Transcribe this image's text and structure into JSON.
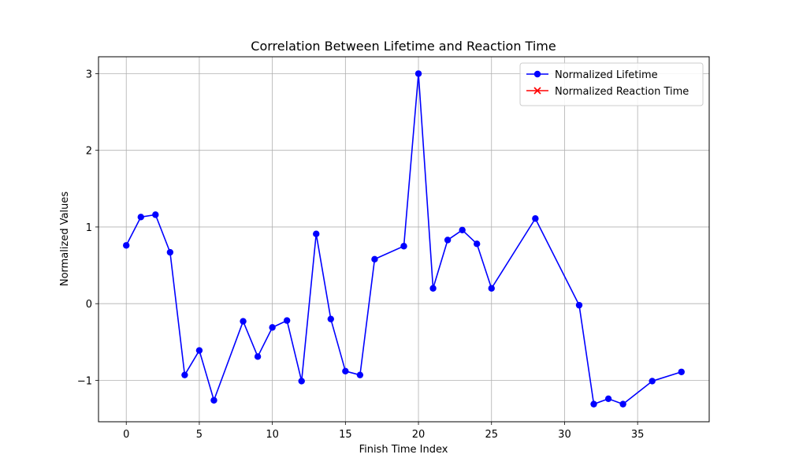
{
  "chart_data": {
    "type": "line",
    "title": "Correlation Between Lifetime and Reaction Time",
    "xlabel": "Finish Time Index",
    "ylabel": "Normalized Values",
    "xlim": [
      -1.9,
      39.9
    ],
    "ylim": [
      -1.54,
      3.22
    ],
    "xticks": [
      0,
      5,
      10,
      15,
      20,
      25,
      30,
      35
    ],
    "yticks": [
      -1,
      0,
      1,
      2,
      3
    ],
    "ytick_labels": [
      "−1",
      "0",
      "1",
      "2",
      "3"
    ],
    "grid": true,
    "legend_position": "upper-right",
    "series": [
      {
        "name": "Normalized Lifetime",
        "color": "#0000ff",
        "marker": "circle",
        "x": [
          0,
          1,
          2,
          3,
          4,
          5,
          6,
          8,
          9,
          10,
          11,
          12,
          13,
          14,
          15,
          16,
          17,
          19,
          20,
          21,
          22,
          23,
          24,
          25,
          28,
          31,
          32,
          33,
          34,
          36,
          38
        ],
        "y": [
          0.76,
          1.13,
          1.16,
          0.67,
          -0.93,
          -0.61,
          -1.26,
          -0.23,
          -0.69,
          -0.31,
          -0.22,
          -1.01,
          0.91,
          -0.2,
          -0.88,
          -0.93,
          0.58,
          0.75,
          3.0,
          0.2,
          0.83,
          0.96,
          0.78,
          0.2,
          1.11,
          -0.02,
          -1.31,
          -1.24,
          -1.31,
          -1.01,
          -0.89
        ]
      },
      {
        "name": "Normalized Reaction Time",
        "color": "#ff0000",
        "marker": "x",
        "x": [],
        "y": []
      }
    ]
  }
}
